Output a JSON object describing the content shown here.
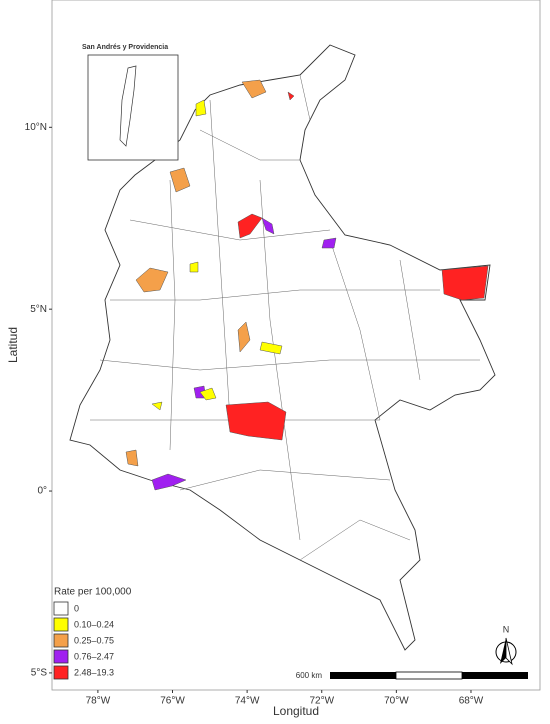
{
  "map": {
    "inset_title": "San Andrés y Providencia",
    "y_label": "Latitud",
    "x_label": "Longitud",
    "latlim": [
      -5.47,
      13.5
    ],
    "lonlim": [
      -79.23,
      -66.15
    ],
    "lat_ticks": [
      {
        "value": 10,
        "label": "10°N"
      },
      {
        "value": 5,
        "label": "5°N"
      },
      {
        "value": 0,
        "label": "0°"
      },
      {
        "value": -5,
        "label": "5°S"
      }
    ],
    "lon_ticks": [
      {
        "value": -78,
        "label": "78°W"
      },
      {
        "value": -76,
        "label": "76°W"
      },
      {
        "value": -74,
        "label": "74°W"
      },
      {
        "value": -72,
        "label": "72°W"
      },
      {
        "value": -70,
        "label": "70°W"
      },
      {
        "value": -68,
        "label": "68°W"
      }
    ],
    "legend": {
      "title": "Rate per 100,000",
      "items": [
        {
          "label": "0",
          "color": "#ffffff"
        },
        {
          "label": "0.10–0.24",
          "color": "#ffff00"
        },
        {
          "label": "0.25–0.75",
          "color": "#f4a04a"
        },
        {
          "label": "0.76–2.47",
          "color": "#a020f0"
        },
        {
          "label": "2.48–19.3",
          "color": "#ff2222"
        }
      ]
    },
    "scale_label": "600 km",
    "north_label": "N"
  }
}
